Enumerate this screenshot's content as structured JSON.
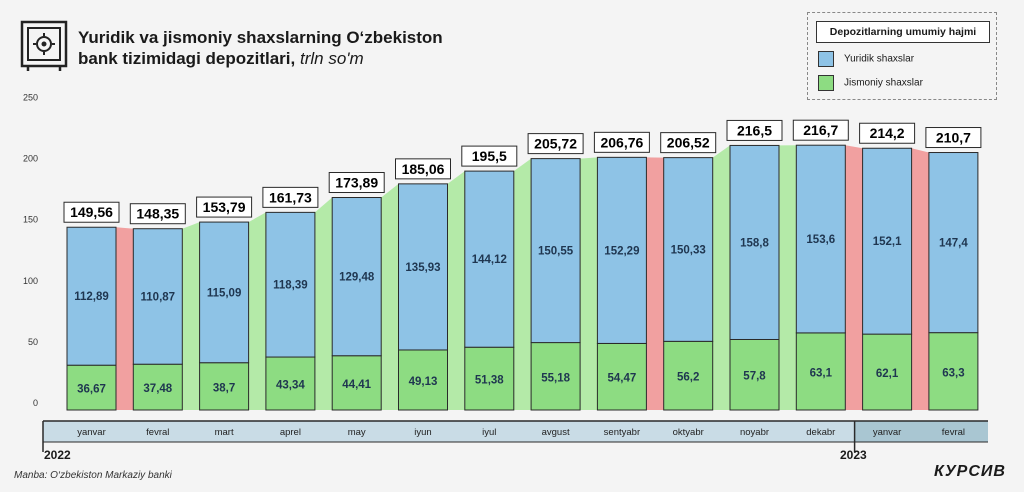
{
  "header": {
    "title_line1": "Yuridik va jismoniy shaxslarning O‘zbekiston",
    "title_line2": "bank tizimidagi depozitlari,",
    "title_unit": "trln so'm"
  },
  "legend": {
    "title": "Depozitlarning umumiy hajmi",
    "items": [
      {
        "label": "Yuridik shaxslar",
        "color": "#8ec3e6"
      },
      {
        "label": "Jismoniy shaxslar",
        "color": "#8ddc82"
      }
    ]
  },
  "years": [
    "2022",
    "2023"
  ],
  "footer": {
    "source": "Manba: O‘zbekiston Markaziy banki",
    "brand": "КУРСИВ"
  },
  "colors": {
    "legal": "#8ec3e6",
    "individual": "#8ddc82",
    "increase_band": "#b4eaa8",
    "decrease_band": "#f1a0a0",
    "axis_bar": "#c9dce6",
    "axis_bar_2023": "#a9c6d2"
  },
  "chart_data": {
    "type": "bar",
    "stacked": true,
    "categories": [
      "yanvar",
      "fevral",
      "mart",
      "aprel",
      "may",
      "iyun",
      "iyul",
      "avgust",
      "sentyabr",
      "oktyabr",
      "noyabr",
      "dekabr",
      "yanvar",
      "fevral"
    ],
    "category_labels": [
      "yanvar",
      "fevral",
      "mart",
      "aprel",
      "may",
      "iyun",
      "iyul",
      "avgust",
      "sentyabr",
      "oktyabr",
      "noyabr",
      "dekabr",
      "yanvar",
      "fevral"
    ],
    "series": [
      {
        "name": "Jismoniy shaxslar",
        "values": [
          36.67,
          37.48,
          38.7,
          43.34,
          44.41,
          49.13,
          51.38,
          55.18,
          54.47,
          56.2,
          57.8,
          63.1,
          62.1,
          63.3
        ],
        "labels": [
          "36,67",
          "37,48",
          "38,7",
          "43,34",
          "44,41",
          "49,13",
          "51,38",
          "55,18",
          "54,47",
          "56,2",
          "57,8",
          "63,1",
          "62,1",
          "63,3"
        ]
      },
      {
        "name": "Yuridik shaxslar",
        "values": [
          112.89,
          110.87,
          115.09,
          118.39,
          129.48,
          135.93,
          144.12,
          150.55,
          152.29,
          150.33,
          158.8,
          153.6,
          152.1,
          147.4
        ],
        "labels": [
          "112,89",
          "110,87",
          "115,09",
          "118,39",
          "129,48",
          "135,93",
          "144,12",
          "150,55",
          "152,29",
          "150,33",
          "158,8",
          "153,6",
          "152,1",
          "147,4"
        ]
      }
    ],
    "totals": [
      149.56,
      148.35,
      153.79,
      161.73,
      173.89,
      185.06,
      195.5,
      205.72,
      206.76,
      206.52,
      216.5,
      216.7,
      214.2,
      210.7
    ],
    "total_labels": [
      "149,56",
      "148,35",
      "153,79",
      "161,73",
      "173,89",
      "185,06",
      "195,5",
      "205,72",
      "206,76",
      "206,52",
      "216,5",
      "216,7",
      "214,2",
      "210,7"
    ],
    "yticks": [
      "0",
      "50",
      "100",
      "150",
      "200",
      "250"
    ],
    "ylim": [
      0,
      250
    ],
    "grid": false,
    "legend_position": "top-right",
    "xlabel": "",
    "ylabel": ""
  }
}
